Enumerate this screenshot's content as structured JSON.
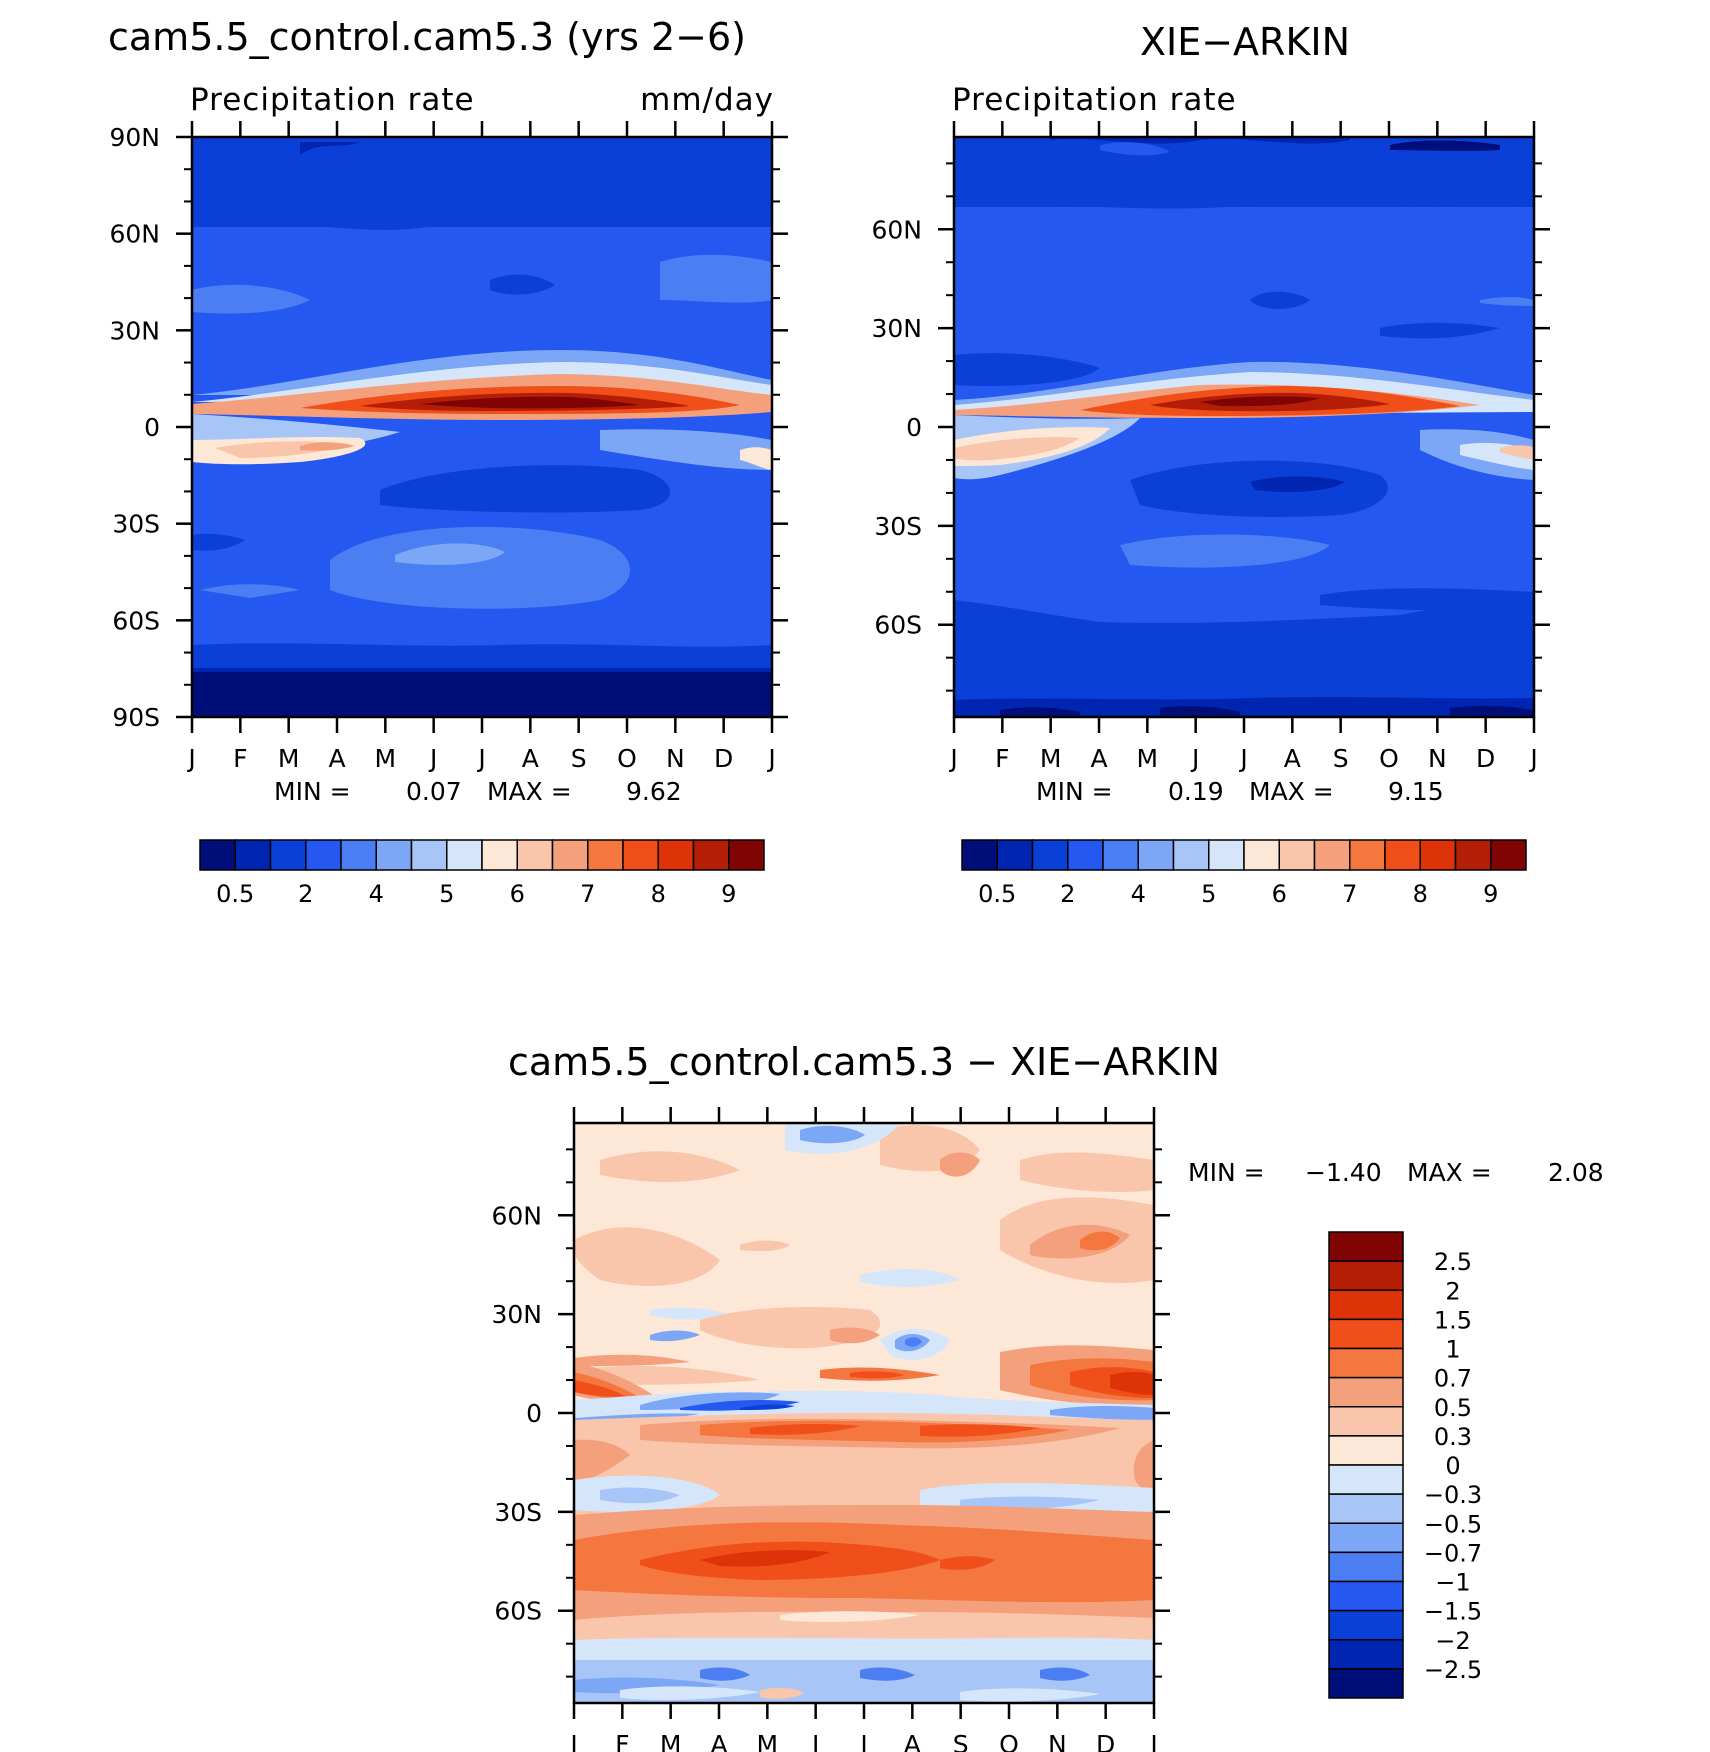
{
  "chart_data": [
    {
      "type": "heatmap",
      "id": "model",
      "title": "cam5.5_control.cam5.3 (yrs 2−6)",
      "subtitle_left": "Precipitation rate",
      "subtitle_right": "mm/day",
      "x_tick_labels": [
        "J",
        "F",
        "M",
        "A",
        "M",
        "J",
        "J",
        "A",
        "S",
        "O",
        "N",
        "D",
        "J"
      ],
      "y_tick_labels": [
        "90N",
        "60N",
        "30N",
        "0",
        "30S",
        "60S",
        "90S"
      ],
      "y_tick_values": [
        90,
        60,
        30,
        0,
        -30,
        -60,
        -90
      ],
      "ylim": [
        -90,
        90
      ],
      "min_label": "MIN =",
      "min_value": "0.07",
      "max_label": "MAX =",
      "max_value": "9.62",
      "colorbar": {
        "orientation": "horizontal",
        "colors": [
          "#000e7a",
          "#0025b0",
          "#0a3fd8",
          "#2458f0",
          "#4a7ef2",
          "#7ca6f6",
          "#a8c5f8",
          "#d6e6fa",
          "#fde8d8",
          "#f9c6ac",
          "#f5a07c",
          "#f3773f",
          "#f04f1a",
          "#de3208",
          "#b51e06",
          "#800404"
        ],
        "labels": [
          "0.5",
          "2",
          "4",
          "5",
          "6",
          "7",
          "8",
          "9"
        ]
      }
    },
    {
      "type": "heatmap",
      "id": "obs",
      "title": "XIE−ARKIN",
      "subtitle_left": "Precipitation rate",
      "x_tick_labels": [
        "J",
        "F",
        "M",
        "A",
        "M",
        "J",
        "J",
        "A",
        "S",
        "O",
        "N",
        "D",
        "J"
      ],
      "y_tick_labels": [
        "60N",
        "30N",
        "0",
        "30S",
        "60S"
      ],
      "y_tick_values": [
        60,
        30,
        0,
        -30,
        -60
      ],
      "ylim": [
        -88,
        88
      ],
      "min_label": "MIN =",
      "min_value": "0.19",
      "max_label": "MAX =",
      "max_value": "9.15",
      "colorbar": {
        "orientation": "horizontal",
        "colors": [
          "#000e7a",
          "#0025b0",
          "#0a3fd8",
          "#2458f0",
          "#4a7ef2",
          "#7ca6f6",
          "#a8c5f8",
          "#d6e6fa",
          "#fde8d8",
          "#f9c6ac",
          "#f5a07c",
          "#f3773f",
          "#f04f1a",
          "#de3208",
          "#b51e06",
          "#800404"
        ],
        "labels": [
          "0.5",
          "2",
          "4",
          "5",
          "6",
          "7",
          "8",
          "9"
        ]
      }
    },
    {
      "type": "heatmap",
      "id": "diff",
      "title": "cam5.5_control.cam5.3 − XIE−ARKIN",
      "x_tick_labels": [
        "J",
        "F",
        "M",
        "A",
        "M",
        "J",
        "J",
        "A",
        "S",
        "O",
        "N",
        "D",
        "J"
      ],
      "y_tick_labels": [
        "60N",
        "30N",
        "0",
        "30S",
        "60S"
      ],
      "y_tick_values": [
        60,
        30,
        0,
        -30,
        -60
      ],
      "ylim": [
        -88,
        88
      ],
      "min_label": "MIN =",
      "min_value": "−1.40",
      "max_label": "MAX =",
      "max_value": "2.08",
      "colorbar": {
        "orientation": "vertical",
        "colors": [
          "#800404",
          "#b51e06",
          "#de3208",
          "#f04f1a",
          "#f3773f",
          "#f5a07c",
          "#f9c6ac",
          "#fde8d8",
          "#d6e6fa",
          "#a8c5f8",
          "#7ca6f6",
          "#4a7ef2",
          "#2458f0",
          "#0a3fd8",
          "#0025b0",
          "#000e7a"
        ],
        "labels": [
          "2.5",
          "2",
          "1.5",
          "1",
          "0.7",
          "0.5",
          "0.3",
          "0",
          "−0.3",
          "−0.5",
          "−0.7",
          "−1",
          "−1.5",
          "−2",
          "−2.5"
        ]
      }
    }
  ]
}
